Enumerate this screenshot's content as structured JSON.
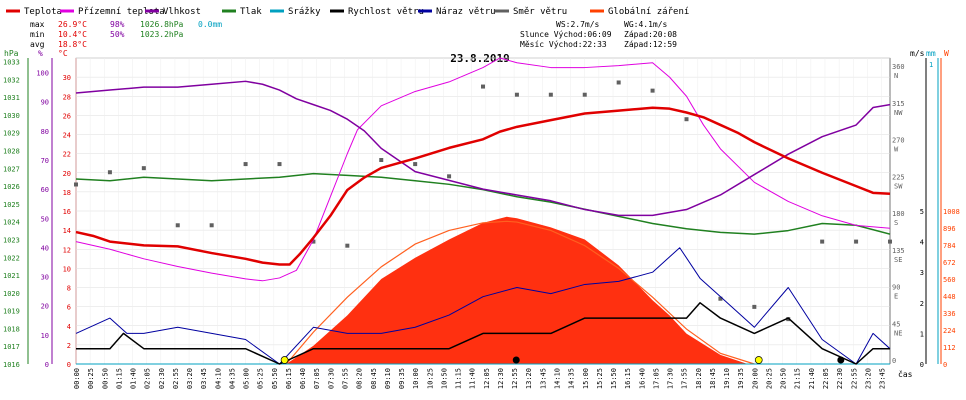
{
  "legend": [
    {
      "label": "Teplota",
      "color": "#e00000"
    },
    {
      "label": "Přízemní teplota",
      "color": "#e000e0"
    },
    {
      "label": "Vlhkost",
      "color": "#8000a0"
    },
    {
      "label": "Tlak",
      "color": "#208020"
    },
    {
      "label": "Srážky",
      "color": "#00a0c0"
    },
    {
      "label": "Rychlost větru",
      "color": "#000000"
    },
    {
      "label": "Náraz větru",
      "color": "#0000a0"
    },
    {
      "label": "Směr větru",
      "color": "#606060"
    },
    {
      "label": "Globální záření",
      "color": "#ff4000"
    }
  ],
  "stats": {
    "max_label": "max",
    "max_temp": "26.9°C",
    "max_hum": "98%",
    "max_press": "1026.8hPa",
    "max_rain": "0.0mm",
    "min_label": "min",
    "min_temp": "10.4°C",
    "min_hum": "50%",
    "min_press": "1023.2hPa",
    "avg_label": "avg",
    "avg_temp": "18.8°C"
  },
  "info": {
    "ws": "WS:2.7m/s",
    "wg": "WG:4.1m/s",
    "sun": "Slunce Východ:06:09",
    "sun_set": "Západ:20:08",
    "moon": "Měsíc  Východ:22:33",
    "moon_set": "Západ:12:59"
  },
  "title": "23.8.2019",
  "axes": {
    "hpa_unit": "hPa",
    "pct_unit": "%",
    "c_unit": "°C",
    "ms_unit": "m/s",
    "mm_unit": "mm",
    "w_unit": "W",
    "x_unit": "čas",
    "hpa_ticks": [
      "1033",
      "1032",
      "1031",
      "1030",
      "1029",
      "1028",
      "1027",
      "1026",
      "1025",
      "1024",
      "1023",
      "1022",
      "1021",
      "1020",
      "1019",
      "1018",
      "1017",
      "1016"
    ],
    "pct_ticks": [
      "100",
      "90",
      "80",
      "70",
      "60",
      "50",
      "40",
      "30",
      "20",
      "10",
      "0"
    ],
    "c_ticks": [
      "30",
      "28",
      "26",
      "24",
      "22",
      "20",
      "18",
      "16",
      "14",
      "12",
      "10",
      "8",
      "6",
      "4",
      "2",
      "0"
    ],
    "deg_ticks": [
      "360",
      "315",
      "270",
      "225",
      "180",
      "135",
      "90",
      "45",
      "0"
    ],
    "dir_ticks": [
      "N",
      "NW",
      "W",
      "SW",
      "S",
      "SE",
      "E",
      "NE"
    ],
    "ms_ticks": [
      "5",
      "4",
      "3",
      "2",
      "1",
      "0"
    ],
    "mm_top": "1",
    "w_ticks": [
      "1008",
      "896",
      "784",
      "672",
      "560",
      "448",
      "336",
      "224",
      "112",
      "0"
    ],
    "x_ticks": [
      "00:00",
      "00:25",
      "00:50",
      "01:15",
      "01:40",
      "02:05",
      "02:30",
      "02:55",
      "03:20",
      "03:45",
      "04:10",
      "04:35",
      "05:00",
      "05:25",
      "05:50",
      "06:15",
      "06:40",
      "07:05",
      "07:30",
      "07:55",
      "08:20",
      "08:45",
      "09:10",
      "09:35",
      "10:00",
      "10:25",
      "10:50",
      "11:15",
      "11:40",
      "12:05",
      "12:30",
      "12:55",
      "13:20",
      "13:45",
      "14:10",
      "14:35",
      "15:00",
      "15:25",
      "15:50",
      "16:15",
      "16:40",
      "17:05",
      "17:30",
      "17:55",
      "18:20",
      "18:45",
      "19:10",
      "19:35",
      "20:00",
      "20:25",
      "20:50",
      "21:15",
      "21:40",
      "22:05",
      "22:30",
      "22:55",
      "23:20",
      "23:45"
    ]
  },
  "chart_data": {
    "type": "line",
    "title": "23.8.2019",
    "x_range_hours": [
      0,
      24
    ],
    "temperature_c": {
      "x": [
        0,
        0.5,
        1,
        2,
        3,
        4,
        5,
        5.5,
        6,
        6.3,
        6.6,
        7,
        7.5,
        8,
        8.5,
        9,
        9.5,
        10,
        11,
        12,
        12.5,
        13,
        14,
        15,
        16,
        17,
        17.5,
        18,
        18.5,
        19,
        19.5,
        20,
        21,
        22,
        23,
        23.5,
        24
      ],
      "y": [
        13.8,
        13.4,
        12.8,
        12.4,
        12.3,
        11.6,
        11.0,
        10.6,
        10.4,
        10.4,
        11.5,
        13.2,
        15.5,
        18.2,
        19.5,
        20.5,
        21.0,
        21.5,
        22.6,
        23.5,
        24.3,
        24.8,
        25.5,
        26.2,
        26.5,
        26.8,
        26.7,
        26.3,
        25.8,
        25.0,
        24.2,
        23.2,
        21.5,
        20.0,
        18.6,
        17.9,
        17.8
      ]
    },
    "ground_temp_c": {
      "x": [
        0,
        1,
        2,
        3,
        4,
        5,
        5.5,
        6,
        6.5,
        7,
        7.5,
        8,
        8.3,
        9,
        10,
        11,
        12,
        12.5,
        13,
        14,
        15,
        16,
        17,
        17.5,
        18,
        18.5,
        19,
        20,
        21,
        22,
        23,
        24
      ],
      "y": [
        12.8,
        12.0,
        11.0,
        10.2,
        9.5,
        8.9,
        8.7,
        9.0,
        9.8,
        13.0,
        17.5,
        22.0,
        24.5,
        27.0,
        28.5,
        29.5,
        31.0,
        32.0,
        31.5,
        31.0,
        31.0,
        31.2,
        31.5,
        30.0,
        28.0,
        25.0,
        22.5,
        19.0,
        17.0,
        15.5,
        14.5,
        14.2
      ]
    },
    "humidity_pct": {
      "x": [
        0,
        1,
        2,
        3,
        4,
        5,
        5.5,
        6,
        6.5,
        7,
        7.5,
        8,
        8.5,
        9,
        9.5,
        10,
        11,
        12,
        13,
        14,
        15,
        16,
        17,
        18,
        19,
        20,
        21,
        22,
        23,
        23.5,
        24
      ],
      "y": [
        93,
        94,
        95,
        95,
        96,
        97,
        96,
        94,
        91,
        89,
        87,
        84,
        80,
        74,
        70,
        66,
        63,
        60,
        58,
        56,
        53,
        51,
        51,
        53,
        58,
        65,
        72,
        78,
        82,
        88,
        89
      ]
    },
    "pressure_hpa": {
      "x": [
        0,
        1,
        2,
        3,
        4,
        5,
        6,
        7,
        8,
        9,
        10,
        11,
        12,
        13,
        14,
        15,
        16,
        17,
        18,
        19,
        20,
        21,
        22,
        23,
        24
      ],
      "y": [
        1026.4,
        1026.3,
        1026.5,
        1026.4,
        1026.3,
        1026.4,
        1026.5,
        1026.7,
        1026.6,
        1026.5,
        1026.3,
        1026.1,
        1025.8,
        1025.4,
        1025.1,
        1024.7,
        1024.3,
        1023.9,
        1023.6,
        1023.4,
        1023.3,
        1023.5,
        1023.9,
        1023.8,
        1023.3
      ]
    },
    "rain_mm": {
      "x": [
        0,
        24
      ],
      "y": [
        0,
        0
      ]
    },
    "wind_speed_ms": {
      "x": [
        0,
        1,
        1.4,
        2,
        3,
        4,
        5,
        6,
        7,
        8,
        9,
        10,
        11,
        12,
        13,
        14,
        15,
        16,
        17,
        18,
        18.4,
        19,
        20,
        21,
        22,
        23,
        23.5,
        24
      ],
      "y": [
        0.5,
        0.5,
        1.0,
        0.5,
        0.5,
        0.5,
        0.5,
        0,
        0.5,
        0.5,
        0.5,
        0.5,
        0.5,
        1.0,
        1.0,
        1.0,
        1.5,
        1.5,
        1.5,
        1.5,
        2.0,
        1.5,
        1.0,
        1.5,
        0.5,
        0,
        0.5,
        0.5
      ]
    },
    "wind_gust_ms": {
      "x": [
        0,
        1,
        1.5,
        2,
        3,
        4,
        5,
        6,
        7,
        8,
        9,
        10,
        11,
        12,
        13,
        14,
        15,
        16,
        17,
        17.8,
        18.4,
        19,
        20,
        21,
        22,
        23,
        23.5,
        24
      ],
      "y": [
        1.0,
        1.5,
        1.0,
        1.0,
        1.2,
        1.0,
        0.8,
        0,
        1.2,
        1.0,
        1.0,
        1.2,
        1.6,
        2.2,
        2.5,
        2.3,
        2.6,
        2.7,
        3.0,
        3.8,
        2.8,
        2.2,
        1.2,
        2.5,
        0.8,
        0,
        1.0,
        0.5
      ]
    },
    "wind_dir_deg": {
      "x": [
        0,
        1,
        2,
        3,
        4,
        5,
        6,
        7,
        8,
        9,
        10,
        11,
        12,
        13,
        14,
        15,
        16,
        17,
        18,
        19,
        20,
        21,
        22,
        23,
        24
      ],
      "y": [
        220,
        235,
        240,
        170,
        170,
        245,
        245,
        150,
        145,
        250,
        245,
        230,
        340,
        330,
        330,
        330,
        345,
        335,
        300,
        80,
        70,
        55,
        150,
        150,
        150
      ]
    },
    "global_radiation_wm2": {
      "x": [
        6.2,
        7,
        8,
        9,
        10,
        11,
        12,
        12.7,
        13,
        14,
        15,
        16,
        17,
        17.5,
        18,
        19,
        19.8
      ],
      "y": [
        0,
        120,
        320,
        560,
        700,
        820,
        930,
        970,
        960,
        900,
        820,
        650,
        420,
        320,
        200,
        60,
        0
      ]
    },
    "clear_sky_radiation_wm2": {
      "x": [
        6.2,
        7,
        8,
        9,
        10,
        11,
        12,
        12.7,
        13,
        14,
        15,
        16,
        17,
        18,
        19,
        20
      ],
      "y": [
        0,
        210,
        440,
        640,
        790,
        880,
        930,
        940,
        935,
        880,
        780,
        630,
        440,
        230,
        70,
        0
      ]
    }
  }
}
